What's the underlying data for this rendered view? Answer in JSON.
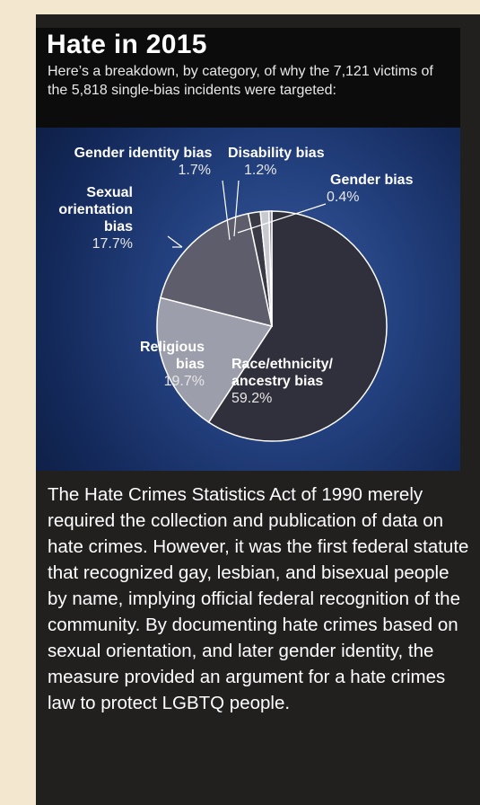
{
  "page": {
    "paragraph": "The Hate Crimes Statistics Act of 1990 merely required the collection and publication of data on hate crimes. However, it was the first federal statute that recognized gay, lesbian, and bisexual people by name, implying official federal recognition of the community. By documenting hate crimes based on sexual orientation, and later gender identity, the measure provided an argument for a hate crimes law to protect LGBTQ people."
  },
  "chart_data": {
    "type": "pie",
    "title": "Hate in 2015",
    "subtitle": "Here’s a breakdown, by category, of why the 7,121 victims of the 5,818 single-bias incidents were targeted:",
    "slices": [
      {
        "label": "Race/ethnicity/ ancestry bias",
        "value": 59.2,
        "value_label": "59.2%",
        "color": "#302f3c"
      },
      {
        "label": "Religious bias",
        "value": 19.7,
        "value_label": "19.7%",
        "color": "#9c9eab"
      },
      {
        "label": "Sexual orientation bias",
        "value": 17.7,
        "value_label": "17.7%",
        "color": "#5d5d6b"
      },
      {
        "label": "Gender identity bias",
        "value": 1.7,
        "value_label": "1.7%",
        "color": "#3a3a47"
      },
      {
        "label": "Disability bias",
        "value": 1.2,
        "value_label": "1.2%",
        "color": "#c9c9d0"
      },
      {
        "label": "Gender bias",
        "value": 0.4,
        "value_label": "0.4%",
        "color": "#8c8c98"
      }
    ],
    "start_angle_deg": 0,
    "direction": "clockwise"
  },
  "colors": {
    "background": "#f3e7cf",
    "panel": "#221f1f",
    "header": "#0c0c0c",
    "text": "#ffffff"
  }
}
